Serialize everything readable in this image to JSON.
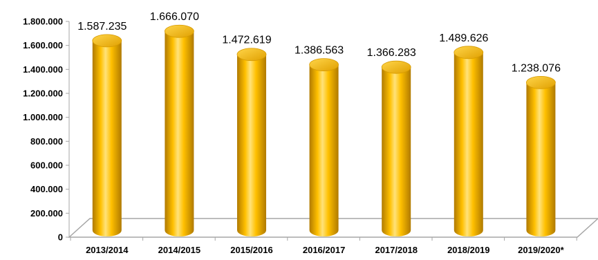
{
  "chart_data": {
    "type": "bar",
    "style": "3d-cylinder",
    "categories": [
      "2013/2014",
      "2014/2015",
      "2015/2016",
      "2016/2017",
      "2017/2018",
      "2018/2019",
      "2019/2020*"
    ],
    "series": [
      {
        "values": [
          1587235,
          1666070,
          1472619,
          1386563,
          1366283,
          1489626,
          1238076
        ],
        "data_labels": [
          "1.587.235",
          "1.666.070",
          "1.472.619",
          "1.386.563",
          "1.366.283",
          "1.489.626",
          "1.238.076"
        ]
      }
    ],
    "y_ticks": [
      "0",
      "200.000",
      "400.000",
      "600.000",
      "800.000",
      "1.000.000",
      "1.200.000",
      "1.400.000",
      "1.600.000",
      "1.800.000"
    ],
    "ylim": [
      0,
      1800000
    ],
    "title": "",
    "xlabel": "",
    "ylabel": "",
    "grid": false,
    "legend": "none",
    "colors": {
      "bar_fill": "#FFC000",
      "bar_highlight": "#FFE680",
      "bar_shadow": "#C08A00",
      "axis": "#A6A6A6"
    }
  }
}
